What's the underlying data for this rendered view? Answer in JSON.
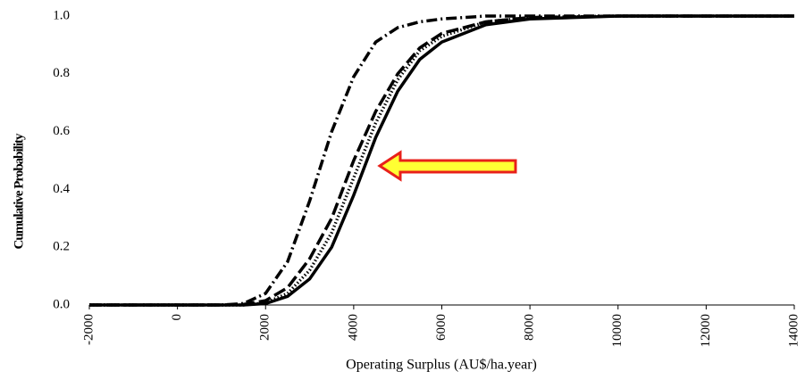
{
  "chart_data": {
    "type": "line",
    "xlabel": "Operating Surplus (AU$/ha.year)",
    "ylabel": "Cumulative Probability",
    "x": [
      -2000,
      1000,
      1500,
      2000,
      2500,
      3000,
      3500,
      4000,
      4500,
      5000,
      5500,
      6000,
      7000,
      8000,
      10000,
      14000
    ],
    "series": [
      {
        "color": "#000000",
        "style": "solid",
        "values": [
          0,
          0,
          0,
          0.005,
          0.03,
          0.09,
          0.2,
          0.38,
          0.58,
          0.74,
          0.85,
          0.91,
          0.97,
          0.99,
          1,
          1
        ]
      },
      {
        "color": "#000000",
        "style": "dotted",
        "values": [
          0,
          0,
          0,
          0.007,
          0.04,
          0.12,
          0.25,
          0.44,
          0.63,
          0.78,
          0.88,
          0.93,
          0.98,
          0.995,
          1,
          1
        ]
      },
      {
        "color": "#000000",
        "style": "dashed",
        "values": [
          0,
          0,
          0.002,
          0.015,
          0.06,
          0.16,
          0.3,
          0.5,
          0.67,
          0.8,
          0.89,
          0.94,
          0.98,
          0.995,
          1,
          1
        ]
      },
      {
        "color": "#000000",
        "style": "dashdot",
        "values": [
          0,
          0,
          0.005,
          0.04,
          0.15,
          0.36,
          0.6,
          0.79,
          0.91,
          0.96,
          0.98,
          0.99,
          1,
          1,
          1,
          1
        ]
      }
    ],
    "xlim": [
      -2000,
      14000
    ],
    "xticks": [
      -2000,
      0,
      2000,
      4000,
      6000,
      8000,
      10000,
      12000,
      14000
    ],
    "ylim": [
      0,
      1
    ],
    "yticks": [
      {
        "value": 0,
        "label": "0.0"
      },
      0.2,
      0.4,
      0.6,
      0.8,
      {
        "value": 1,
        "label": "1.0"
      }
    ],
    "grid": false
  }
}
